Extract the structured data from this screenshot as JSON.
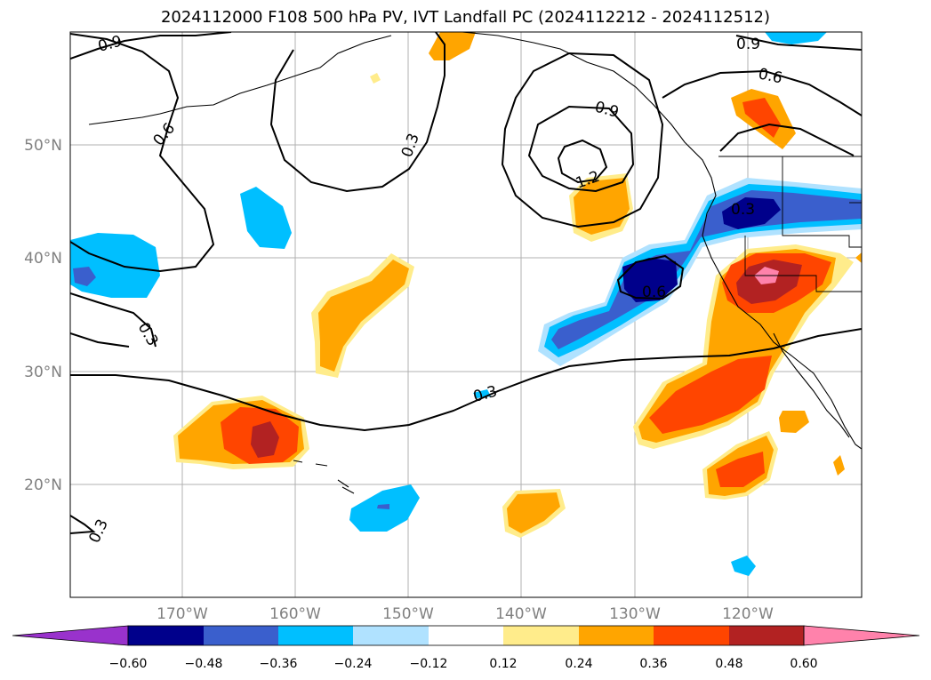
{
  "title": "2024112000 F108 500 hPa PV, IVT Landfall PC (2024112212 - 2024112512)",
  "lat_labels": [
    "50°N",
    "40°N",
    "30°N",
    "20°N"
  ],
  "lon_labels": [
    "170°W",
    "160°W",
    "150°W",
    "140°W",
    "130°W",
    "120°W"
  ],
  "contour_labels": [
    "0.9",
    "0.6",
    "0.3",
    "0.9",
    "1.2",
    "0.9",
    "0.6",
    "0.3",
    "0.6",
    "0.3",
    "0.3",
    "0.3"
  ],
  "colorbar": {
    "colors": [
      "#9932cc",
      "#00008b",
      "#3a5fcd",
      "#00bfff",
      "#b0e2ff",
      "#ffffff",
      "#ffec8b",
      "#ffa500",
      "#ff4500",
      "#b22222",
      "#ff82ab"
    ],
    "tick_labels": [
      "−0.60",
      "−0.48",
      "−0.36",
      "−0.24",
      "−0.12",
      "0.12",
      "0.24",
      "0.36",
      "0.48",
      "0.60"
    ]
  }
}
